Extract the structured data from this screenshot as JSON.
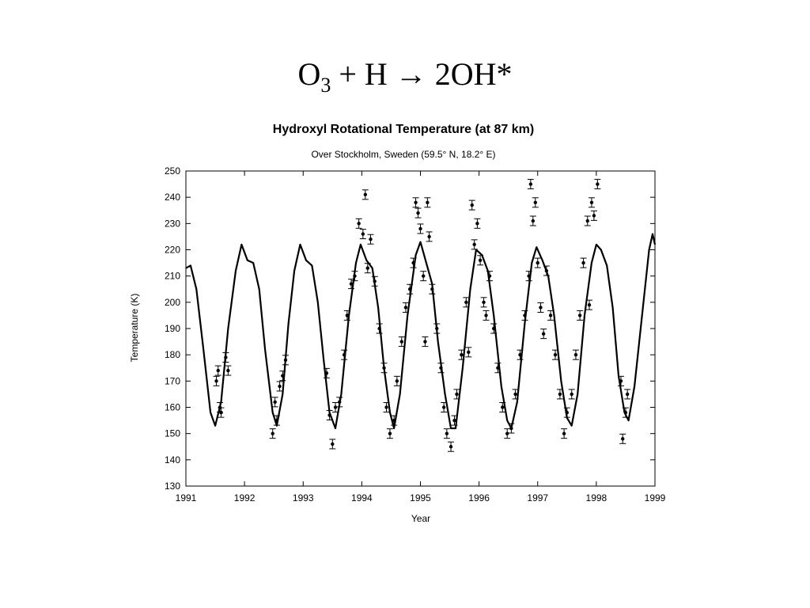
{
  "slide": {
    "title_parts": {
      "o": "O",
      "sub": "3",
      "rest": " + H → 2OH*"
    }
  },
  "chart_data": {
    "type": "line",
    "title": "Hydroxyl Rotational Temperature (at 87 km)",
    "subtitle": "Over Stockholm, Sweden (59.5° N, 18.2° E)",
    "xlabel": "Year",
    "ylabel": "Temperature (K)",
    "xlim": [
      1991,
      1999
    ],
    "ylim": [
      130,
      250
    ],
    "x_ticks": [
      1991,
      1992,
      1993,
      1994,
      1995,
      1996,
      1997,
      1998,
      1999
    ],
    "y_ticks": [
      130,
      140,
      150,
      160,
      170,
      180,
      190,
      200,
      210,
      220,
      230,
      240,
      250
    ],
    "grid": false,
    "series": [
      {
        "style": "solid line",
        "points": [
          [
            1991.0,
            213
          ],
          [
            1991.08,
            214
          ],
          [
            1991.18,
            205
          ],
          [
            1991.3,
            182
          ],
          [
            1991.42,
            158
          ],
          [
            1991.5,
            153
          ],
          [
            1991.6,
            162
          ],
          [
            1991.72,
            190
          ],
          [
            1991.85,
            212
          ],
          [
            1991.95,
            222
          ],
          [
            1992.05,
            216
          ],
          [
            1992.15,
            215
          ],
          [
            1992.25,
            205
          ],
          [
            1992.35,
            182
          ],
          [
            1992.48,
            158
          ],
          [
            1992.55,
            153
          ],
          [
            1992.65,
            165
          ],
          [
            1992.75,
            192
          ],
          [
            1992.85,
            212
          ],
          [
            1992.95,
            222
          ],
          [
            1993.05,
            216
          ],
          [
            1993.15,
            214
          ],
          [
            1993.25,
            200
          ],
          [
            1993.35,
            178
          ],
          [
            1993.45,
            158
          ],
          [
            1993.55,
            152
          ],
          [
            1993.65,
            165
          ],
          [
            1993.78,
            195
          ],
          [
            1993.9,
            215
          ],
          [
            1993.98,
            222
          ],
          [
            1994.08,
            216
          ],
          [
            1994.18,
            213
          ],
          [
            1994.28,
            198
          ],
          [
            1994.38,
            175
          ],
          [
            1994.48,
            158
          ],
          [
            1994.55,
            152
          ],
          [
            1994.65,
            165
          ],
          [
            1994.78,
            195
          ],
          [
            1994.92,
            218
          ],
          [
            1995.0,
            223
          ],
          [
            1995.1,
            215
          ],
          [
            1995.2,
            207
          ],
          [
            1995.3,
            185
          ],
          [
            1995.42,
            165
          ],
          [
            1995.52,
            152
          ],
          [
            1995.6,
            152
          ],
          [
            1995.72,
            175
          ],
          [
            1995.85,
            205
          ],
          [
            1995.95,
            220
          ],
          [
            1996.05,
            218
          ],
          [
            1996.15,
            212
          ],
          [
            1996.25,
            195
          ],
          [
            1996.38,
            168
          ],
          [
            1996.48,
            155
          ],
          [
            1996.55,
            152
          ],
          [
            1996.65,
            162
          ],
          [
            1996.78,
            192
          ],
          [
            1996.9,
            215
          ],
          [
            1996.98,
            221
          ],
          [
            1997.08,
            216
          ],
          [
            1997.18,
            210
          ],
          [
            1997.28,
            195
          ],
          [
            1997.4,
            170
          ],
          [
            1997.5,
            156
          ],
          [
            1997.58,
            153
          ],
          [
            1997.68,
            165
          ],
          [
            1997.8,
            195
          ],
          [
            1997.92,
            215
          ],
          [
            1998.0,
            222
          ],
          [
            1998.08,
            220
          ],
          [
            1998.18,
            214
          ],
          [
            1998.28,
            198
          ],
          [
            1998.38,
            172
          ],
          [
            1998.48,
            158
          ],
          [
            1998.55,
            155
          ],
          [
            1998.65,
            168
          ],
          [
            1998.78,
            195
          ],
          [
            1998.9,
            220
          ],
          [
            1998.96,
            226
          ],
          [
            1999.0,
            222
          ]
        ]
      },
      {
        "style": "points with error bars",
        "points": [
          [
            1991.52,
            170
          ],
          [
            1991.55,
            174
          ],
          [
            1991.58,
            160
          ],
          [
            1991.6,
            158
          ],
          [
            1991.68,
            179
          ],
          [
            1991.72,
            174
          ],
          [
            1992.48,
            150
          ],
          [
            1992.52,
            162
          ],
          [
            1992.55,
            155
          ],
          [
            1992.6,
            168
          ],
          [
            1992.65,
            172
          ],
          [
            1992.7,
            178
          ],
          [
            1993.4,
            173
          ],
          [
            1993.45,
            157
          ],
          [
            1993.5,
            146
          ],
          [
            1993.55,
            160
          ],
          [
            1993.62,
            162
          ],
          [
            1993.7,
            180
          ],
          [
            1993.75,
            195
          ],
          [
            1993.82,
            207
          ],
          [
            1993.88,
            210
          ],
          [
            1993.95,
            230
          ],
          [
            1994.02,
            226
          ],
          [
            1994.06,
            241
          ],
          [
            1994.1,
            213
          ],
          [
            1994.15,
            224
          ],
          [
            1994.22,
            208
          ],
          [
            1994.3,
            190
          ],
          [
            1994.38,
            175
          ],
          [
            1994.42,
            160
          ],
          [
            1994.48,
            150
          ],
          [
            1994.55,
            155
          ],
          [
            1994.6,
            170
          ],
          [
            1994.68,
            185
          ],
          [
            1994.75,
            198
          ],
          [
            1994.82,
            205
          ],
          [
            1994.88,
            215
          ],
          [
            1994.92,
            238
          ],
          [
            1994.96,
            234
          ],
          [
            1995.0,
            228
          ],
          [
            1995.05,
            210
          ],
          [
            1995.08,
            185
          ],
          [
            1995.12,
            238
          ],
          [
            1995.15,
            225
          ],
          [
            1995.2,
            205
          ],
          [
            1995.28,
            190
          ],
          [
            1995.35,
            175
          ],
          [
            1995.4,
            160
          ],
          [
            1995.45,
            150
          ],
          [
            1995.52,
            145
          ],
          [
            1995.58,
            155
          ],
          [
            1995.62,
            165
          ],
          [
            1995.7,
            180
          ],
          [
            1995.78,
            200
          ],
          [
            1995.82,
            181
          ],
          [
            1995.88,
            237
          ],
          [
            1995.92,
            222
          ],
          [
            1995.97,
            230
          ],
          [
            1996.02,
            216
          ],
          [
            1996.08,
            200
          ],
          [
            1996.12,
            195
          ],
          [
            1996.18,
            210
          ],
          [
            1996.25,
            190
          ],
          [
            1996.32,
            175
          ],
          [
            1996.4,
            160
          ],
          [
            1996.48,
            150
          ],
          [
            1996.55,
            152
          ],
          [
            1996.62,
            165
          ],
          [
            1996.7,
            180
          ],
          [
            1996.78,
            195
          ],
          [
            1996.85,
            210
          ],
          [
            1996.88,
            245
          ],
          [
            1996.92,
            231
          ],
          [
            1996.96,
            238
          ],
          [
            1997.0,
            215
          ],
          [
            1997.05,
            198
          ],
          [
            1997.1,
            188
          ],
          [
            1997.15,
            212
          ],
          [
            1997.22,
            195
          ],
          [
            1997.3,
            180
          ],
          [
            1997.38,
            165
          ],
          [
            1997.45,
            150
          ],
          [
            1997.5,
            158
          ],
          [
            1997.58,
            165
          ],
          [
            1997.65,
            180
          ],
          [
            1997.72,
            195
          ],
          [
            1997.78,
            215
          ],
          [
            1997.85,
            231
          ],
          [
            1997.88,
            199
          ],
          [
            1997.92,
            238
          ],
          [
            1997.96,
            233
          ],
          [
            1998.02,
            245
          ],
          [
            1998.42,
            170
          ],
          [
            1998.45,
            148
          ],
          [
            1998.5,
            158
          ],
          [
            1998.53,
            165
          ]
        ]
      }
    ]
  }
}
